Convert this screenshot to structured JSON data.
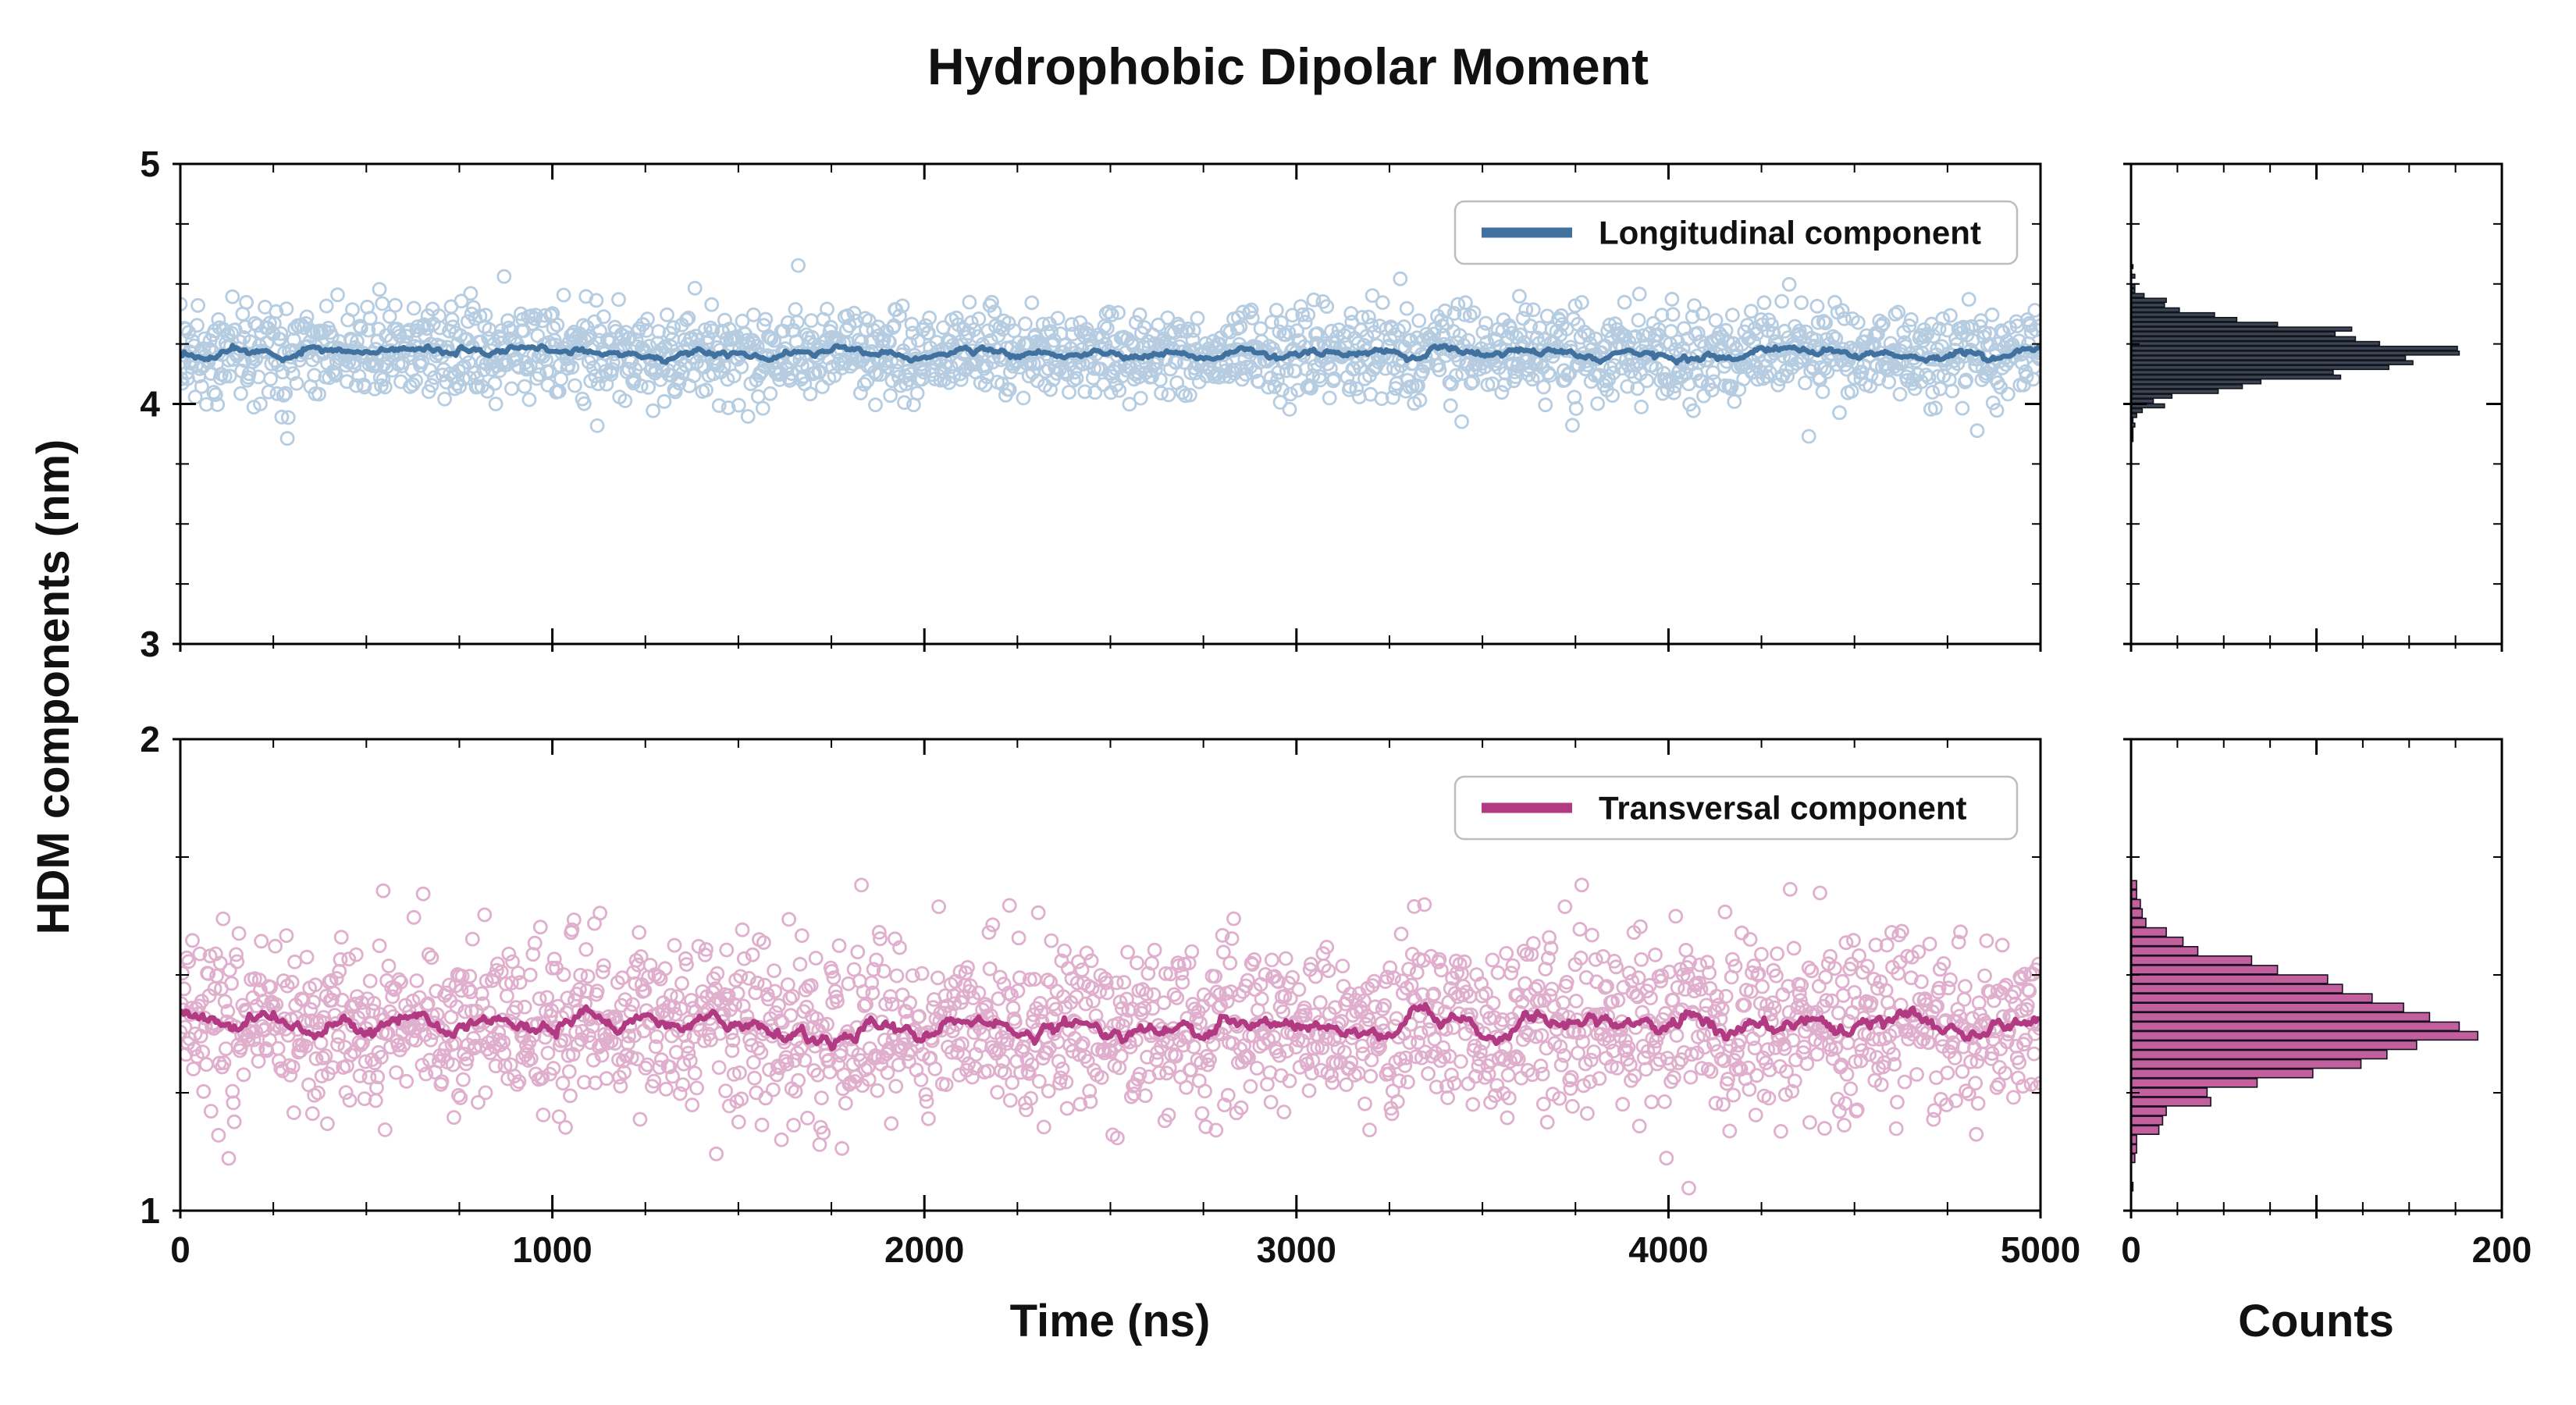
{
  "chart_data": {
    "type": "scatter",
    "title": "Hydrophobic Dipolar Moment",
    "ylabel": "HDM components (nm)",
    "xlabel": "Time (ns)",
    "hist_xlabel": "Counts",
    "x_range": [
      0,
      5000
    ],
    "x_ticks": [
      0,
      1000,
      2000,
      3000,
      4000,
      5000
    ],
    "x_tick_labels": [
      "0",
      "1000",
      "2000",
      "3000",
      "4000",
      "5000"
    ],
    "x_minor_step": 250,
    "hist_x_range": [
      0,
      200
    ],
    "hist_x_ticks": [
      0,
      100,
      200
    ],
    "hist_x_tick_labels": [
      "0",
      "",
      "200"
    ],
    "hist_x_minor_step": 25,
    "legend_position": "upper right",
    "grid": false,
    "seed": 42,
    "series": [
      {
        "id": "longitudinal",
        "name": "Longitudinal component",
        "mean": 4.21,
        "std": 0.095,
        "n_points": 2000,
        "ylim": [
          3,
          5
        ],
        "y_ticks": [
          3,
          4,
          5
        ],
        "y_tick_labels": [
          "3",
          "4",
          "5"
        ],
        "y_minor_step": 0.25,
        "smoothing_window": 15,
        "hist_bin_width": 0.02,
        "colors": {
          "scatter": "#7ba4ca",
          "line": "#41719f",
          "hist_fill": "#3d4553",
          "hist_stroke": "#11151c"
        }
      },
      {
        "id": "transversal",
        "name": "Transversal component",
        "mean": 1.39,
        "std": 0.09,
        "n_points": 2000,
        "ylim": [
          1,
          2
        ],
        "y_ticks": [
          1,
          2
        ],
        "y_tick_labels": [
          "1",
          "2"
        ],
        "y_minor_step": 0.25,
        "smoothing_window": 15,
        "hist_bin_width": 0.02,
        "colors": {
          "scatter": "#c66ea6",
          "line": "#b13a82",
          "hist_fill": "#c2609e",
          "hist_stroke": "#190f22"
        }
      }
    ]
  }
}
